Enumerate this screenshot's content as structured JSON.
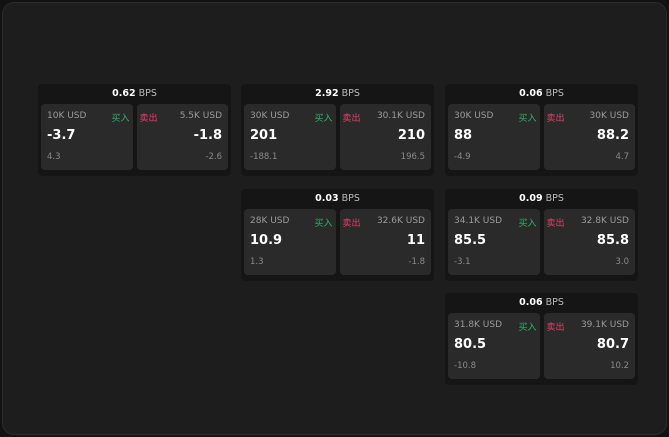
{
  "labels": {
    "buy": "买入",
    "sell": "卖出",
    "unit": "BPS"
  },
  "colors": {
    "buy": "#2fb36a",
    "sell": "#e0406a"
  },
  "panels": [
    {
      "bps": "0.62",
      "buy": {
        "amount": "10K USD",
        "price": "-3.7",
        "change": "4.3"
      },
      "sell": {
        "amount": "5.5K USD",
        "price": "-1.8",
        "change": "-2.6"
      }
    },
    {
      "bps": "2.92",
      "buy": {
        "amount": "30K USD",
        "price": "201",
        "change": "-188.1"
      },
      "sell": {
        "amount": "30.1K USD",
        "price": "210",
        "change": "196.5"
      }
    },
    {
      "bps": "0.06",
      "buy": {
        "amount": "30K USD",
        "price": "88",
        "change": "-4.9"
      },
      "sell": {
        "amount": "30K USD",
        "price": "88.2",
        "change": "4.7"
      }
    },
    {
      "bps": "0.03",
      "buy": {
        "amount": "28K USD",
        "price": "10.9",
        "change": "1.3"
      },
      "sell": {
        "amount": "32.6K USD",
        "price": "11",
        "change": "-1.8"
      }
    },
    {
      "bps": "0.09",
      "buy": {
        "amount": "34.1K USD",
        "price": "85.5",
        "change": "-3.1"
      },
      "sell": {
        "amount": "32.8K USD",
        "price": "85.8",
        "change": "3.0"
      }
    },
    {
      "bps": "0.06",
      "buy": {
        "amount": "31.8K USD",
        "price": "80.5",
        "change": "-10.8"
      },
      "sell": {
        "amount": "39.1K USD",
        "price": "80.7",
        "change": "10.2"
      }
    }
  ]
}
